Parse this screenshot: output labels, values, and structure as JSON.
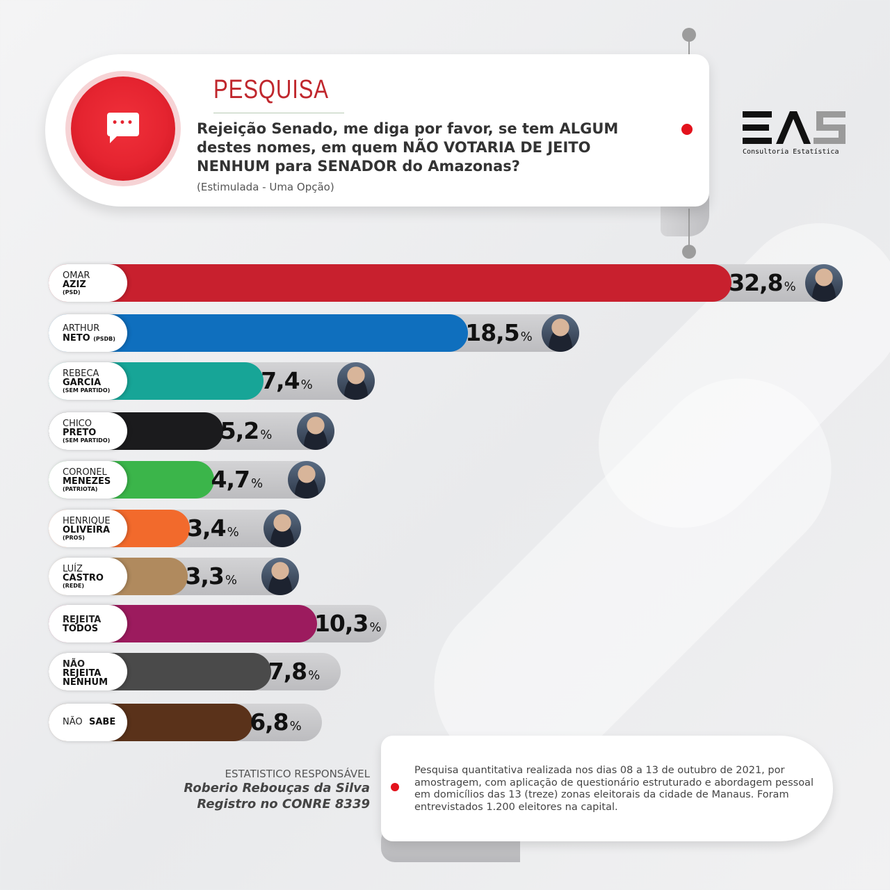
{
  "header": {
    "title": "PESQUISA",
    "question": "Rejeição Senado, me diga por favor, se tem ALGUM destes nomes, em quem NÃO VOTARIA DE JEITO NENHUM para SENADOR do Amazonas?",
    "subtitle": "(Estimulada - Uma Opção)",
    "icon": "chat-bubble-icon"
  },
  "logo": {
    "text": "EAS",
    "caption": "Consultoria Estatística"
  },
  "chart_data": {
    "type": "bar",
    "orientation": "horizontal",
    "title": "PESQUISA",
    "unit": "%",
    "categories": [
      {
        "l1": "OMAR",
        "l2": "AZIZ",
        "party": "(PSD)",
        "value": 32.8,
        "display": "32,8",
        "color": "#c8202e",
        "photo": true
      },
      {
        "l1": "ARTHUR",
        "l2": "NETO",
        "party": "(PSDB)",
        "value": 18.5,
        "display": "18,5",
        "color": "#0f6fbe",
        "photo": true,
        "party_inline": true
      },
      {
        "l1": "REBECA",
        "l2": "GARCIA",
        "party": "(SEM PARTIDO)",
        "value": 7.4,
        "display": "7,4",
        "color": "#17a597",
        "photo": true
      },
      {
        "l1": "CHICO",
        "l2": "PRETO",
        "party": "(SEM PARTIDO)",
        "value": 5.2,
        "display": "5,2",
        "color": "#1b1b1d",
        "photo": true
      },
      {
        "l1": "CORONEL",
        "l2": "MENEZES",
        "party": "(PATRIOTA)",
        "value": 4.7,
        "display": "4,7",
        "color": "#3bb54a",
        "photo": true
      },
      {
        "l1": "HENRIQUE",
        "l2": "OLIVEIRA",
        "party": "(PROS)",
        "value": 3.4,
        "display": "3,4",
        "color": "#f26a2c",
        "photo": true
      },
      {
        "l1": "LUÍZ",
        "l2": "CASTRO",
        "party": "(REDE)",
        "value": 3.3,
        "display": "3,3",
        "color": "#b08a5e",
        "photo": true
      },
      {
        "l1": "REJEITA",
        "l2": "TODOS",
        "party": "",
        "value": 10.3,
        "display": "10,3",
        "color": "#9c1b5e",
        "photo": false
      },
      {
        "l1": "NÃO",
        "l2": "REJEITA",
        "party": "NENHUM",
        "value": 7.8,
        "display": "7,8",
        "color": "#4a4a4a",
        "photo": false,
        "bold_all": true
      },
      {
        "l1": "NÃO",
        "l2": "SABE",
        "party": "",
        "value": 6.8,
        "display": "6,8",
        "color": "#5a321a",
        "photo": false,
        "single_line": true
      }
    ]
  },
  "responsible": {
    "label": "ESTATISTICO RESPONSÁVEL",
    "name": "Roberio Rebouças da Silva",
    "registry": "Registro no CONRE 8339"
  },
  "methodology": "Pesquisa quantitativa realizada nos dias 08 a 13 de outubro de 2021, por amostragem, com aplicação de questionário estruturado e abordagem pessoal em domicílios das 13 (treze) zonas eleitorais da cidade de Manaus. Foram entrevistados 1.200 eleitores na capital."
}
